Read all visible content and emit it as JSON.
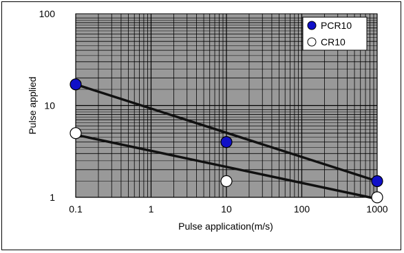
{
  "chart_data": {
    "type": "scatter",
    "xlabel": "Pulse application(m/s)",
    "ylabel": "Pulse applied",
    "x_scale": "log",
    "y_scale": "log",
    "xlim": [
      0.1,
      1000
    ],
    "ylim": [
      1,
      100
    ],
    "x_ticks": [
      "0.1",
      "1",
      "10",
      "100",
      "1000"
    ],
    "y_ticks": [
      "1",
      "10",
      "100"
    ],
    "grid": true,
    "legend_position": "top-right",
    "series": [
      {
        "name": "PCR10",
        "marker": "filled-circle",
        "color": "#1010c8",
        "points": [
          [
            0.1,
            17
          ],
          [
            10,
            4
          ],
          [
            1000,
            1.5
          ]
        ],
        "trendline": [
          [
            0.1,
            17
          ],
          [
            1000,
            1.5
          ]
        ]
      },
      {
        "name": "CR10",
        "marker": "open-circle",
        "color": "#ffffff",
        "points": [
          [
            0.1,
            5
          ],
          [
            10,
            1.5
          ],
          [
            1000,
            1
          ]
        ],
        "trendline": [
          [
            0.1,
            4.8
          ],
          [
            1000,
            0.95
          ]
        ]
      }
    ],
    "colors": {
      "plot_background": "#999999",
      "grid": "#000000",
      "trendline": "#111111"
    }
  }
}
